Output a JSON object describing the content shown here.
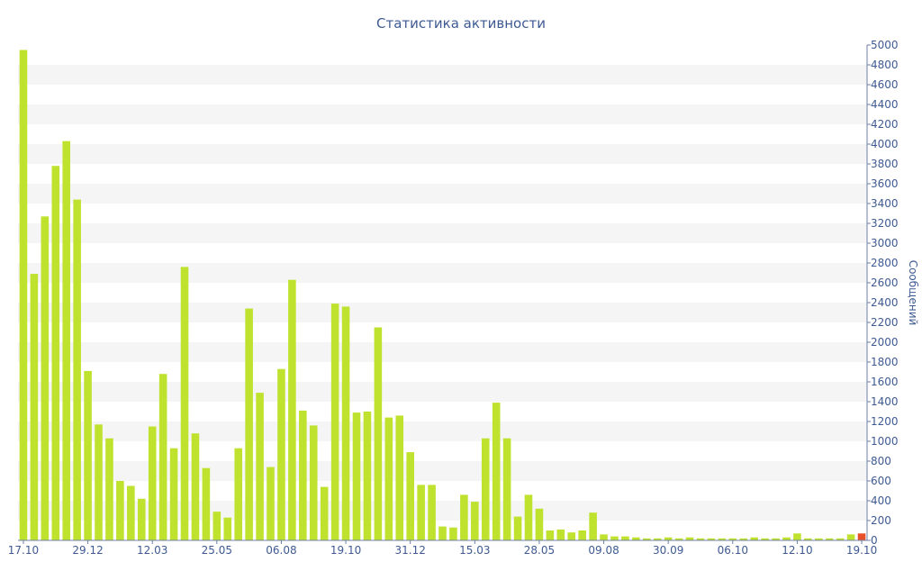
{
  "chart_data": {
    "type": "bar",
    "title": "Статистика активности",
    "xlabel": "",
    "ylabel": "Сообщений",
    "ylim": [
      0,
      5000
    ],
    "yticks": [
      0,
      200,
      400,
      600,
      800,
      1000,
      1200,
      1400,
      1600,
      1800,
      2000,
      2200,
      2400,
      2600,
      2800,
      3000,
      3200,
      3400,
      3600,
      3800,
      4000,
      4200,
      4400,
      4600,
      4800,
      5000
    ],
    "grid": "horizontal-bands",
    "legend": "none",
    "x_tick_labels": [
      {
        "index": 0,
        "label": "17.10"
      },
      {
        "index": 6,
        "label": "29.12"
      },
      {
        "index": 12,
        "label": "12.03"
      },
      {
        "index": 18,
        "label": "25.05"
      },
      {
        "index": 24,
        "label": "06.08"
      },
      {
        "index": 30,
        "label": "19.10"
      },
      {
        "index": 36,
        "label": "31.12"
      },
      {
        "index": 42,
        "label": "15.03"
      },
      {
        "index": 48,
        "label": "28.05"
      },
      {
        "index": 54,
        "label": "09.08"
      },
      {
        "index": 60,
        "label": "30.09"
      },
      {
        "index": 66,
        "label": "06.10"
      },
      {
        "index": 72,
        "label": "12.10"
      },
      {
        "index": 78,
        "label": "19.10"
      }
    ],
    "values": [
      4950,
      2690,
      3270,
      3780,
      4030,
      3440,
      1710,
      1170,
      1030,
      600,
      550,
      420,
      1150,
      1680,
      930,
      2760,
      1080,
      730,
      290,
      230,
      930,
      2340,
      1490,
      740,
      1730,
      2630,
      1310,
      1160,
      540,
      2390,
      2360,
      1290,
      1300,
      2150,
      1240,
      1260,
      890,
      560,
      560,
      140,
      130,
      460,
      390,
      1030,
      1390,
      1030,
      240,
      460,
      320,
      100,
      110,
      80,
      100,
      280,
      60,
      40,
      40,
      30,
      20,
      20,
      30,
      20,
      30,
      20,
      20,
      20,
      20,
      20,
      30,
      20,
      20,
      30,
      70,
      20,
      20,
      20,
      20,
      60,
      70
    ],
    "colors": {
      "bar": "#bfe22f",
      "bar_highlight": "#e8502a",
      "text": "#3e5a93",
      "band": "#f5f5f5"
    },
    "highlight_index": 78
  }
}
